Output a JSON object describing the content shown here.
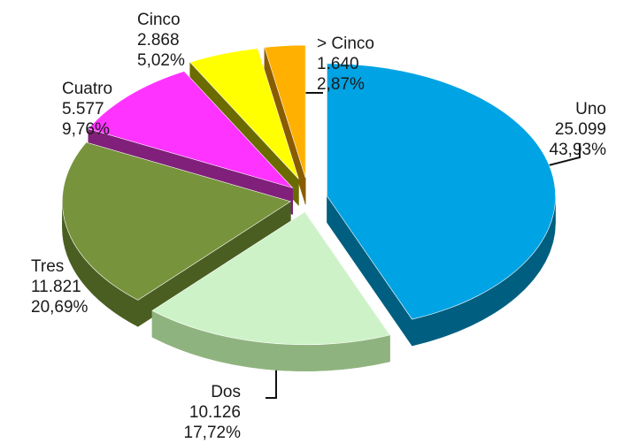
{
  "chart_data": {
    "type": "pie",
    "title": "",
    "legend": "none",
    "three_d": true,
    "exploded": true,
    "slices": [
      {
        "label": "Uno",
        "value": 25099,
        "value_text": "25.099",
        "percent_text": "43,93%",
        "color": "#00a3e4",
        "side_color": "#005f80"
      },
      {
        "label": "Dos",
        "value": 10126,
        "value_text": "10.126",
        "percent_text": "17,72%",
        "color": "#cdf2c8",
        "side_color": "#8fb37e"
      },
      {
        "label": "Tres",
        "value": 11821,
        "value_text": "11.821",
        "percent_text": "20,69%",
        "color": "#77933c",
        "side_color": "#4a5e22"
      },
      {
        "label": "Cuatro",
        "value": 5577,
        "value_text": "5.577",
        "percent_text": "9,76%",
        "color": "#ff33ff",
        "side_color": "#80207a"
      },
      {
        "label": "Cinco",
        "value": 2868,
        "value_text": "2.868",
        "percent_text": "5,02%",
        "color": "#ffff00",
        "side_color": "#6b6b00"
      },
      {
        "label": "> Cinco",
        "value": 1640,
        "value_text": "1.640",
        "percent_text": "2,87%",
        "color": "#ffb000",
        "side_color": "#8a5c00"
      }
    ]
  }
}
